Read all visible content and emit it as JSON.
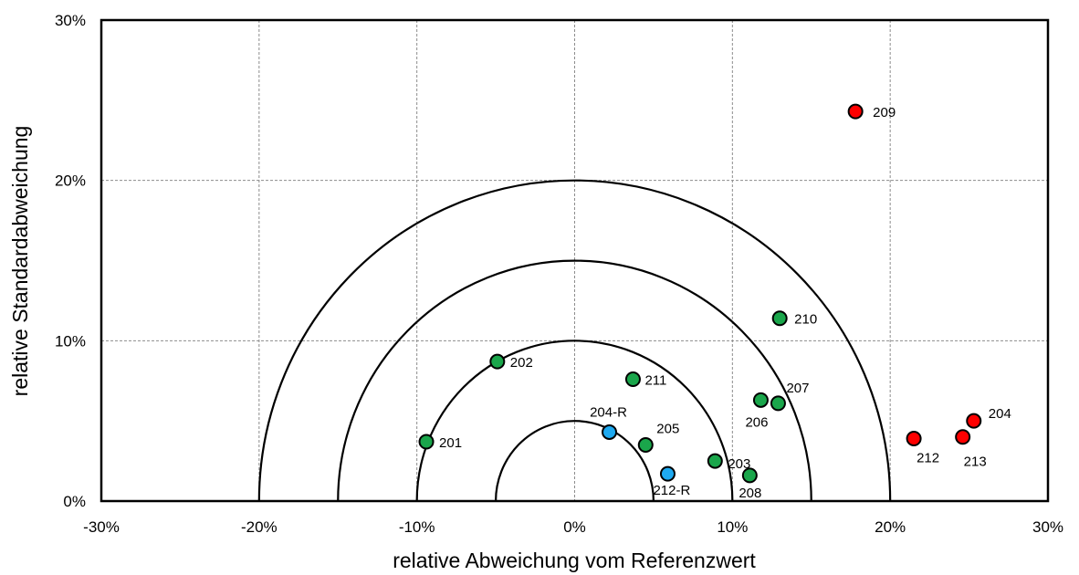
{
  "chart_data": {
    "type": "scatter",
    "title": "",
    "xlabel": "relative Abweichung  vom Referenzwert",
    "ylabel": "relative Standardabweichung",
    "xlim": [
      -30,
      30
    ],
    "ylim": [
      0,
      30
    ],
    "x_ticks": [
      -30,
      -20,
      -10,
      0,
      10,
      20,
      30
    ],
    "y_ticks": [
      0,
      10,
      20,
      30
    ],
    "x_tick_labels": [
      "-30%",
      "-20%",
      "-10%",
      "0%",
      "10%",
      "20%",
      "30%"
    ],
    "y_tick_labels": [
      "0%",
      "10%",
      "20%",
      "30%"
    ],
    "grid": true,
    "grid_style": "dashed",
    "semicircle_radii": [
      5,
      10,
      15,
      20
    ],
    "category_colors": {
      "green": "#1aa64b",
      "red": "#ff0000",
      "blue": "#1ea9f0"
    },
    "points": [
      {
        "label": "201",
        "x": -9.4,
        "y": 3.7,
        "color": "green"
      },
      {
        "label": "202",
        "x": -4.9,
        "y": 8.7,
        "color": "green"
      },
      {
        "label": "203",
        "x": 8.9,
        "y": 2.5,
        "color": "green"
      },
      {
        "label": "204",
        "x": 25.3,
        "y": 5.0,
        "color": "red"
      },
      {
        "label": "204-R",
        "x": 2.2,
        "y": 4.3,
        "color": "blue"
      },
      {
        "label": "205",
        "x": 4.5,
        "y": 3.5,
        "color": "green"
      },
      {
        "label": "206",
        "x": 11.8,
        "y": 6.3,
        "color": "green"
      },
      {
        "label": "207",
        "x": 12.9,
        "y": 6.1,
        "color": "green"
      },
      {
        "label": "208",
        "x": 11.1,
        "y": 1.6,
        "color": "green"
      },
      {
        "label": "209",
        "x": 17.8,
        "y": 24.3,
        "color": "red"
      },
      {
        "label": "210",
        "x": 13.0,
        "y": 11.4,
        "color": "green"
      },
      {
        "label": "211",
        "x": 3.7,
        "y": 7.6,
        "color": "green"
      },
      {
        "label": "212",
        "x": 21.5,
        "y": 3.9,
        "color": "red"
      },
      {
        "label": "212-R",
        "x": 5.9,
        "y": 1.7,
        "color": "blue"
      },
      {
        "label": "213",
        "x": 24.6,
        "y": 4.0,
        "color": "red"
      }
    ]
  }
}
